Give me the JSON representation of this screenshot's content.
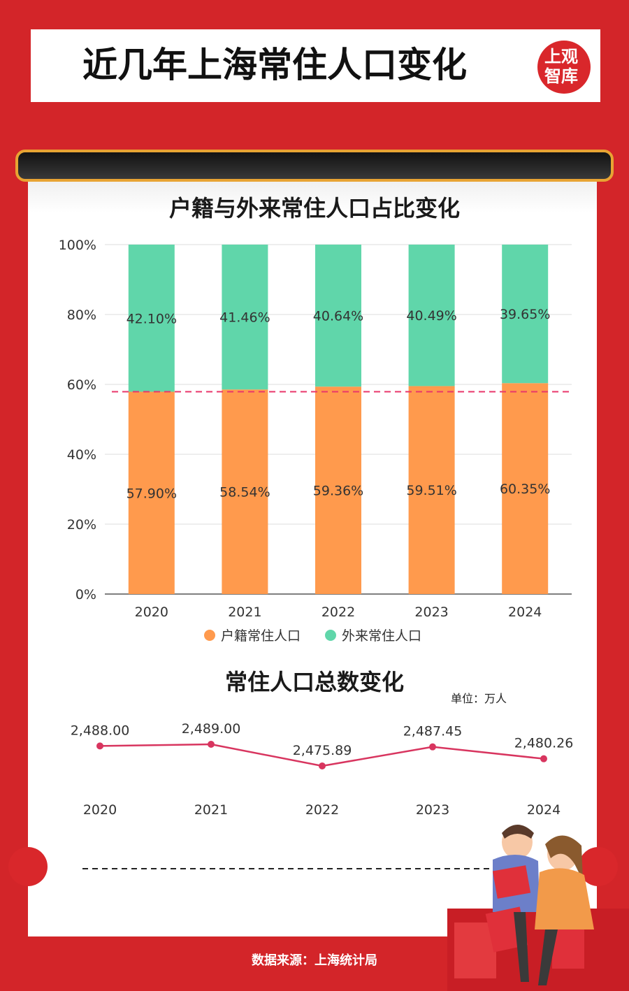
{
  "header": {
    "title": "近几年上海常住人口变化",
    "logo_line1": "上观",
    "logo_line2": "智库"
  },
  "colors": {
    "background": "#d9272b",
    "frame_gold": "#e8a433",
    "huji": "#ff9a4d",
    "wailai": "#60d6aa",
    "line": "#d8355f",
    "reference": "#e8366a"
  },
  "chart_data": [
    {
      "type": "bar",
      "stacked": true,
      "title": "户籍与外来常住人口占比变化",
      "categories": [
        "2020",
        "2021",
        "2022",
        "2023",
        "2024"
      ],
      "series": [
        {
          "name": "户籍常住人口",
          "values": [
            57.9,
            58.54,
            59.36,
            59.51,
            60.35
          ],
          "labels": [
            "57.90%",
            "58.54%",
            "59.36%",
            "59.51%",
            "60.35%"
          ]
        },
        {
          "name": "外来常住人口",
          "values": [
            42.1,
            41.46,
            40.64,
            40.49,
            39.65
          ],
          "labels": [
            "42.10%",
            "41.46%",
            "40.64%",
            "40.49%",
            "39.65%"
          ]
        }
      ],
      "ylim": [
        0,
        100
      ],
      "yticks": [
        "0%",
        "20%",
        "40%",
        "60%",
        "80%",
        "100%"
      ],
      "reference_line": 57.9,
      "grid": true,
      "legend": "bottom"
    },
    {
      "type": "line",
      "title": "常住人口总数变化",
      "unit": "单位：万人",
      "x": [
        "2020",
        "2021",
        "2022",
        "2023",
        "2024"
      ],
      "values": [
        2488.0,
        2489.0,
        2475.89,
        2487.45,
        2480.26
      ],
      "labels": [
        "2,488.00",
        "2,489.00",
        "2,475.89",
        "2,487.45",
        "2,480.26"
      ]
    }
  ],
  "footer": {
    "source": "数据来源：上海统计局"
  }
}
